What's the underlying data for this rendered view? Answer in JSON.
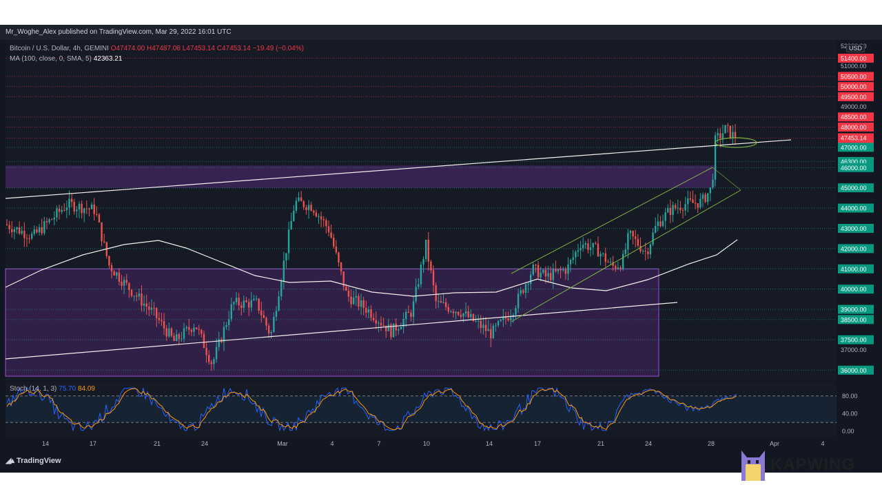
{
  "header": {
    "published": "Mr_Woghe_Alex published on TradingView.com, Mar 29, 2022 16:01 UTC"
  },
  "legend": {
    "symbol": "Bitcoin / U.S. Dollar, 4h, GEMINI",
    "ohlc": "O47474.00 H47487.08 L47453.14 C47453.14 −19.49 (−0.04%)",
    "ma_label": "MA (100, close, 0, SMA, 5)",
    "ma_value": "42363.21"
  },
  "stoch_legend": {
    "label": "Stoch (14, 1, 3)",
    "k_value": "75.70",
    "d_value": "84.09"
  },
  "footer": {
    "brand": "TradingView",
    "watermark": "KAPWING"
  },
  "currency": "USD",
  "colors": {
    "background": "#131722",
    "up": "#26a69a",
    "down": "#ef5350",
    "zone": "#6a2e8f",
    "ma": "#f5f0ee",
    "channel": "#7cb342",
    "stoch_k": "#2962ff",
    "stoch_d": "#ff9800",
    "price_badge_red": "#f23645",
    "price_badge_green": "#089981"
  },
  "chart_data": {
    "type": "candlestick",
    "ylim": [
      35500,
      52300
    ],
    "x_ticks": [
      "14",
      "17",
      "21",
      "24",
      "Mar",
      "4",
      "7",
      "10",
      "14",
      "17",
      "21",
      "24",
      "28",
      "Apr",
      "4"
    ],
    "y_ticks": [
      "52000.00",
      "51000.00",
      "49000.00",
      "39000.00",
      "37000.00"
    ],
    "price_levels": [
      {
        "label": "51400.00",
        "value": 51400,
        "color": "red"
      },
      {
        "label": "50500.00",
        "value": 50500,
        "color": "red"
      },
      {
        "label": "50000.00",
        "value": 50000,
        "color": "red"
      },
      {
        "label": "49500.00",
        "value": 49500,
        "color": "red"
      },
      {
        "label": "48500.00",
        "value": 48500,
        "color": "red"
      },
      {
        "label": "48000.00",
        "value": 48000,
        "color": "red"
      },
      {
        "label": "47453.14",
        "value": 47453.14,
        "color": "red",
        "sub": "03:58:18"
      },
      {
        "label": "47000.00",
        "value": 47000,
        "color": "green"
      },
      {
        "label": "46300.00",
        "value": 46300,
        "color": "green"
      },
      {
        "label": "46000.00",
        "value": 46000,
        "color": "green"
      },
      {
        "label": "45000.00",
        "value": 45000,
        "color": "green"
      },
      {
        "label": "44000.00",
        "value": 44000,
        "color": "green"
      },
      {
        "label": "43000.00",
        "value": 43000,
        "color": "green"
      },
      {
        "label": "42000.00",
        "value": 42000,
        "color": "green"
      },
      {
        "label": "41000.00",
        "value": 41000,
        "color": "green"
      },
      {
        "label": "40000.00",
        "value": 40000,
        "color": "green"
      },
      {
        "label": "39000.00",
        "value": 39000,
        "color": "green"
      },
      {
        "label": "38500.00",
        "value": 38500,
        "color": "green"
      },
      {
        "label": "37500.00",
        "value": 37500,
        "color": "green"
      },
      {
        "label": "36000.00",
        "value": 36000,
        "color": "green"
      }
    ],
    "last_price": 47453.14,
    "ma_value": 42363.21,
    "stoch_ticks": [
      "80.00",
      "40.00",
      "0.00"
    ]
  }
}
